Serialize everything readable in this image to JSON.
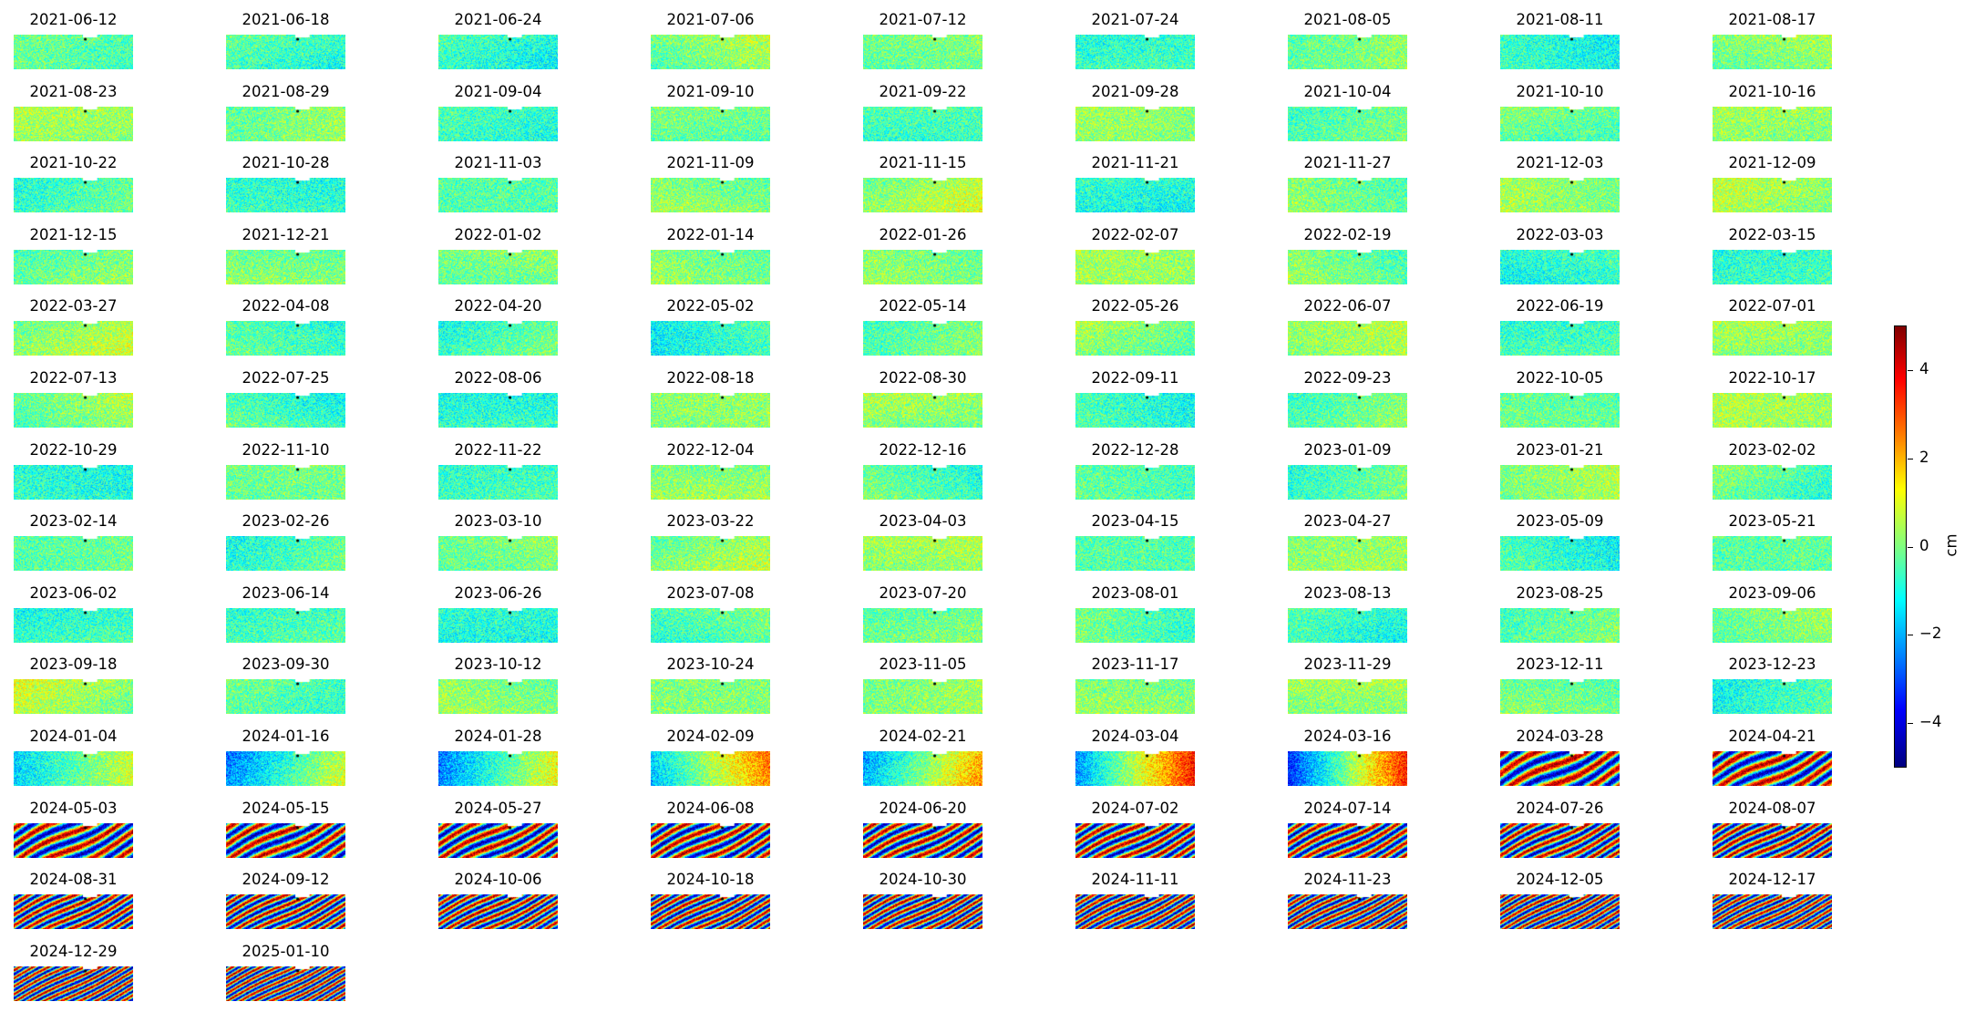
{
  "chart_data": {
    "type": "heatmap",
    "description_of_panels": "grid of small deformation maps, 9 per row",
    "panels": [
      "2021-06-12",
      "2021-06-18",
      "2021-06-24",
      "2021-07-06",
      "2021-07-12",
      "2021-07-24",
      "2021-08-05",
      "2021-08-11",
      "2021-08-17",
      "2021-08-23",
      "2021-08-29",
      "2021-09-04",
      "2021-09-10",
      "2021-09-22",
      "2021-09-28",
      "2021-10-04",
      "2021-10-10",
      "2021-10-16",
      "2021-10-22",
      "2021-10-28",
      "2021-11-03",
      "2021-11-09",
      "2021-11-15",
      "2021-11-21",
      "2021-11-27",
      "2021-12-03",
      "2021-12-09",
      "2021-12-15",
      "2021-12-21",
      "2022-01-02",
      "2022-01-14",
      "2022-01-26",
      "2022-02-07",
      "2022-02-19",
      "2022-03-03",
      "2022-03-15",
      "2022-03-27",
      "2022-04-08",
      "2022-04-20",
      "2022-05-02",
      "2022-05-14",
      "2022-05-26",
      "2022-06-07",
      "2022-06-19",
      "2022-07-01",
      "2022-07-13",
      "2022-07-25",
      "2022-08-06",
      "2022-08-18",
      "2022-08-30",
      "2022-09-11",
      "2022-09-23",
      "2022-10-05",
      "2022-10-17",
      "2022-10-29",
      "2022-11-10",
      "2022-11-22",
      "2022-12-04",
      "2022-12-16",
      "2022-12-28",
      "2023-01-09",
      "2023-01-21",
      "2023-02-02",
      "2023-02-14",
      "2023-02-26",
      "2023-03-10",
      "2023-03-22",
      "2023-04-03",
      "2023-04-15",
      "2023-04-27",
      "2023-05-09",
      "2023-05-21",
      "2023-06-02",
      "2023-06-14",
      "2023-06-26",
      "2023-07-08",
      "2023-07-20",
      "2023-08-01",
      "2023-08-13",
      "2023-08-25",
      "2023-09-06",
      "2023-09-18",
      "2023-09-30",
      "2023-10-12",
      "2023-10-24",
      "2023-11-05",
      "2023-11-17",
      "2023-11-29",
      "2023-12-11",
      "2023-12-23",
      "2024-01-04",
      "2024-01-16",
      "2024-01-28",
      "2024-02-09",
      "2024-02-21",
      "2024-03-04",
      "2024-03-16",
      "2024-03-28",
      "2024-04-21",
      "2024-05-03",
      "2024-05-15",
      "2024-05-27",
      "2024-06-08",
      "2024-06-20",
      "2024-07-02",
      "2024-07-14",
      "2024-07-26",
      "2024-08-07",
      "2024-08-31",
      "2024-09-12",
      "2024-10-06",
      "2024-10-18",
      "2024-10-30",
      "2024-11-11",
      "2024-11-23",
      "2024-12-05",
      "2024-12-17",
      "2024-12-29",
      "2025-01-10"
    ],
    "colorbar": {
      "colormap": "jet",
      "range": [
        -5,
        5
      ],
      "ticks": [
        "4",
        "2",
        "0",
        "−2",
        "−4"
      ],
      "tick_values": [
        4,
        2,
        0,
        -2,
        -4
      ],
      "label": "cm"
    }
  }
}
